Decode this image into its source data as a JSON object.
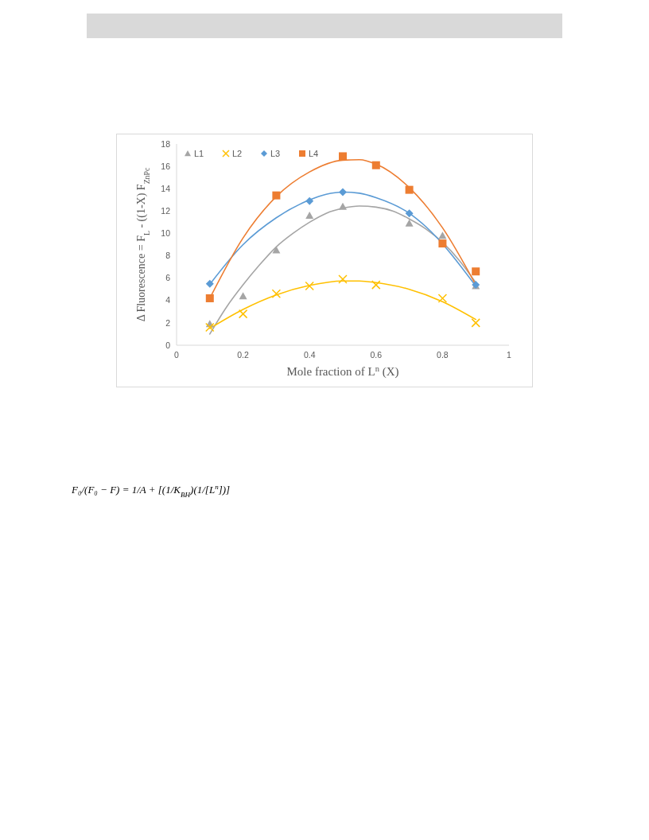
{
  "chart_data": {
    "type": "scatter",
    "xlabel": "Mole fraction of L$^{n}$ (X)",
    "ylabel": "Δ Fluorescence = F$_{L}$ - ((1-X) F$_{ZnPc}$",
    "xlim": [
      0,
      1
    ],
    "xticks": [
      0,
      0.2,
      0.4,
      0.6,
      0.8,
      1
    ],
    "ylim": [
      0,
      18
    ],
    "yticks": [
      0,
      2,
      4,
      6,
      8,
      10,
      12,
      14,
      16,
      18
    ],
    "legend": "top left",
    "series": [
      {
        "type": "line",
        "color": "#a5a5a5",
        "x": [
          0.1,
          0.15,
          0.2,
          0.25,
          0.3,
          0.35,
          0.4,
          0.45,
          0.5,
          0.55,
          0.6,
          0.65,
          0.7,
          0.75,
          0.8,
          0.85,
          0.9
        ],
        "values": [
          1.0,
          3.4,
          5.4,
          7.2,
          8.8,
          10.0,
          11.0,
          11.8,
          12.25,
          12.45,
          12.35,
          12.0,
          11.3,
          10.4,
          9.2,
          7.6,
          5.6
        ]
      },
      {
        "type": "line",
        "color": "#ffc000",
        "x": [
          0.1,
          0.2,
          0.3,
          0.4,
          0.5,
          0.55,
          0.6,
          0.7,
          0.8,
          0.9
        ],
        "values": [
          1.5,
          3.2,
          4.5,
          5.35,
          5.75,
          5.75,
          5.6,
          5.0,
          3.9,
          2.3
        ]
      },
      {
        "type": "line",
        "color": "#5b9bd5",
        "x": [
          0.1,
          0.2,
          0.3,
          0.4,
          0.45,
          0.5,
          0.55,
          0.6,
          0.7,
          0.75,
          0.9
        ],
        "values": [
          5.45,
          9.0,
          11.4,
          13.0,
          13.5,
          13.7,
          13.6,
          13.2,
          11.8,
          10.6,
          5.3
        ]
      },
      {
        "type": "line",
        "color": "#ed7d31",
        "x": [
          0.1,
          0.2,
          0.3,
          0.4,
          0.5,
          0.55,
          0.6,
          0.7,
          0.8,
          0.9
        ],
        "values": [
          4.2,
          9.6,
          13.3,
          15.5,
          16.55,
          16.6,
          16.2,
          14.1,
          10.5,
          5.4
        ]
      },
      {
        "name": "L1",
        "marker": "triangle",
        "color": "#a5a5a5",
        "x": [
          0.1,
          0.2,
          0.3,
          0.4,
          0.5,
          0.7,
          0.8,
          0.9
        ],
        "values": [
          1.9,
          4.4,
          8.5,
          11.6,
          12.4,
          10.9,
          9.8,
          5.3
        ]
      },
      {
        "name": "L2",
        "marker": "cross",
        "color": "#ffc000",
        "x": [
          0.1,
          0.2,
          0.3,
          0.4,
          0.5,
          0.6,
          0.8,
          0.9
        ],
        "values": [
          1.6,
          2.8,
          4.6,
          5.3,
          5.9,
          5.4,
          4.2,
          2.0
        ]
      },
      {
        "name": "L3",
        "marker": "diamond",
        "color": "#5b9bd5",
        "x": [
          0.1,
          0.4,
          0.5,
          0.7,
          0.9
        ],
        "values": [
          5.5,
          12.9,
          13.7,
          11.8,
          5.4
        ]
      },
      {
        "name": "L4",
        "marker": "square",
        "color": "#ed7d31",
        "x": [
          0.1,
          0.3,
          0.5,
          0.6,
          0.7,
          0.8,
          0.9
        ],
        "values": [
          4.2,
          13.4,
          16.9,
          16.1,
          13.9,
          9.1,
          6.6
        ]
      }
    ],
    "annotations": [
      "F₀/(F₀ − F) = 1/A + [(1/K$_{BH}$)(1/[L$^{n}$])]"
    ]
  }
}
